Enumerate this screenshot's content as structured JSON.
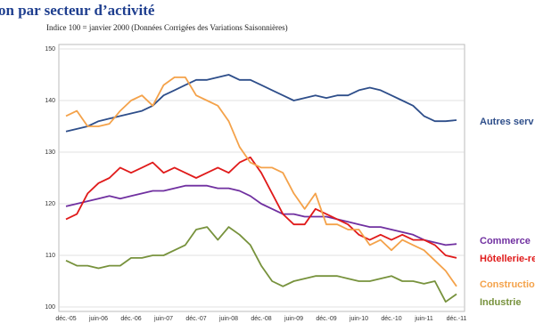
{
  "chart_data": {
    "type": "line",
    "title": "on par secteur d’activité",
    "subtitle": "Indice 100 = janvier 2000 (Données Corrigées des Variations Saisonnières)",
    "categories": [
      "déc.-05",
      null,
      null,
      "juin-06",
      null,
      null,
      "déc.-06",
      null,
      null,
      "juin-07",
      null,
      null,
      "déc.-07",
      null,
      null,
      "juin-08",
      null,
      null,
      "déc.-08",
      null,
      null,
      "juin-09",
      null,
      null,
      "déc.-09",
      null,
      null,
      "juin-10",
      null,
      null,
      "déc.-10",
      null,
      null,
      "juin-11",
      null,
      null,
      "déc.-11"
    ],
    "ylim": [
      100,
      150
    ],
    "yticks": [
      100,
      110,
      120,
      130,
      140,
      150
    ],
    "grid": true,
    "series": [
      {
        "name": "Autres serv",
        "color": "#2e4e8a",
        "values": [
          134,
          134.5,
          135,
          136,
          136.5,
          137,
          137.5,
          138,
          139,
          141,
          142,
          143,
          144,
          144,
          144.5,
          145,
          144,
          144,
          143,
          142,
          141,
          140,
          140.5,
          141,
          140.5,
          141,
          141,
          142,
          142.5,
          142,
          141,
          140,
          139,
          137,
          136,
          136,
          136.2
        ]
      },
      {
        "name": "Commerce",
        "color": "#7030a0",
        "values": [
          119.5,
          120,
          120.5,
          121,
          121.5,
          121,
          121.5,
          122,
          122.5,
          122.5,
          123,
          123.5,
          123.5,
          123.5,
          123,
          123,
          122.5,
          121.5,
          120,
          119,
          118,
          118,
          117.5,
          117.5,
          117.5,
          117,
          116.5,
          116,
          115.5,
          115.5,
          115,
          114.5,
          114,
          113,
          112.5,
          112,
          112.2
        ]
      },
      {
        "name": "Hôtellerie-re",
        "color": "#e01a1a",
        "values": [
          117,
          118,
          122,
          124,
          125,
          127,
          126,
          127,
          128,
          126,
          127,
          126,
          125,
          126,
          127,
          126,
          128,
          129,
          126,
          122,
          118,
          116,
          116,
          119,
          118,
          117,
          116,
          114,
          113,
          114,
          113,
          114,
          113,
          113,
          112,
          110,
          109.5
        ]
      },
      {
        "name": "Construction",
        "color": "#f4a24a",
        "values": [
          137,
          138,
          135,
          135,
          135.5,
          138,
          140,
          141,
          139,
          143,
          144.5,
          144.5,
          141,
          140,
          139,
          136,
          131,
          128,
          127,
          127,
          126,
          122,
          119,
          122,
          116,
          116,
          115,
          115,
          112,
          113,
          111,
          113,
          112,
          111,
          109,
          107,
          104
        ]
      },
      {
        "name": "Industrie",
        "color": "#77923c",
        "values": [
          109,
          108,
          108,
          107.5,
          108,
          108,
          109.5,
          109.5,
          110,
          110,
          111,
          112,
          115,
          115.5,
          113,
          115.5,
          114,
          112,
          108,
          105,
          104,
          105,
          105.5,
          106,
          106,
          106,
          105.5,
          105,
          105,
          105.5,
          106,
          105,
          105,
          104.5,
          105,
          101,
          102.5
        ]
      }
    ]
  }
}
